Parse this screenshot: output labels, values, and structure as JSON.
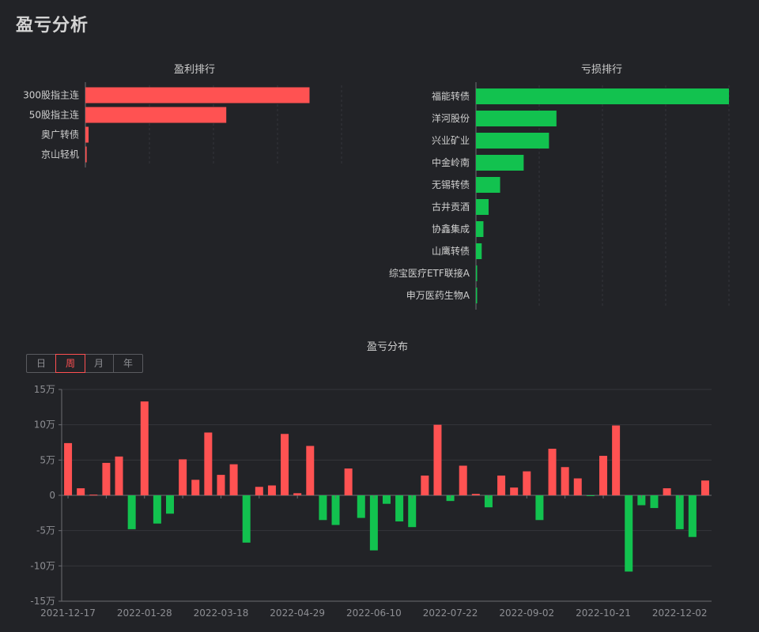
{
  "page": {
    "title": "盈亏分析"
  },
  "colors": {
    "profit": "#ff5252",
    "loss": "#12c24f",
    "grid": "#34363b",
    "axis": "#6c6d72",
    "text": "#cfcfcf",
    "tick": "#8d8e93"
  },
  "period_tabs": {
    "items": [
      "日",
      "周",
      "月",
      "年"
    ],
    "active": "周"
  },
  "chart_data": [
    {
      "id": "profit",
      "type": "bar",
      "orientation": "horizontal",
      "title": "盈利排行",
      "categories": [
        "300股指主连",
        "50股指主连",
        "奥广转债",
        "京山轻机"
      ],
      "values": [
        35000,
        22000,
        500,
        200
      ],
      "xlim": [
        0,
        40000
      ],
      "grid": true,
      "color": "#ff5252"
    },
    {
      "id": "loss",
      "type": "bar",
      "orientation": "horizontal",
      "title": "亏损排行",
      "categories": [
        "福能转债",
        "洋河股份",
        "兴业矿业",
        "中金岭南",
        "无锡转债",
        "古井贡酒",
        "协鑫集成",
        "山鹰转债",
        "综宝医疗ETF联接A",
        "申万医药生物A"
      ],
      "values": [
        44000,
        14000,
        12700,
        8300,
        4200,
        2200,
        1300,
        1000,
        100,
        50
      ],
      "xlim": [
        0,
        44000
      ],
      "grid": true,
      "color": "#12c24f"
    },
    {
      "id": "distribution",
      "type": "bar",
      "title": "盈亏分布",
      "x_ticks": [
        "2021-12-17",
        "2022-01-28",
        "2022-03-18",
        "2022-04-29",
        "2022-06-10",
        "2022-07-22",
        "2022-09-02",
        "2022-10-21",
        "2022-12-02"
      ],
      "y_ticks": [
        "15万",
        "10万",
        "5万",
        "0",
        "-5万",
        "-10万",
        "-15万"
      ],
      "ylim": [
        -150000,
        150000
      ],
      "grid": true,
      "values": [
        74000,
        10000,
        1000,
        46000,
        55000,
        -48000,
        133000,
        -40000,
        -26000,
        51000,
        22000,
        89000,
        29000,
        44000,
        -67000,
        12000,
        14000,
        87000,
        3000,
        70000,
        -35000,
        -42000,
        38000,
        -32000,
        -78000,
        -12000,
        -37000,
        -45000,
        28000,
        100000,
        -8000,
        42000,
        2000,
        -17000,
        28000,
        11000,
        34000,
        -35000,
        66000,
        40000,
        24000,
        -1000,
        56000,
        99000,
        -108000,
        -14000,
        -18000,
        10000,
        -48000,
        -59000,
        21000
      ]
    }
  ]
}
